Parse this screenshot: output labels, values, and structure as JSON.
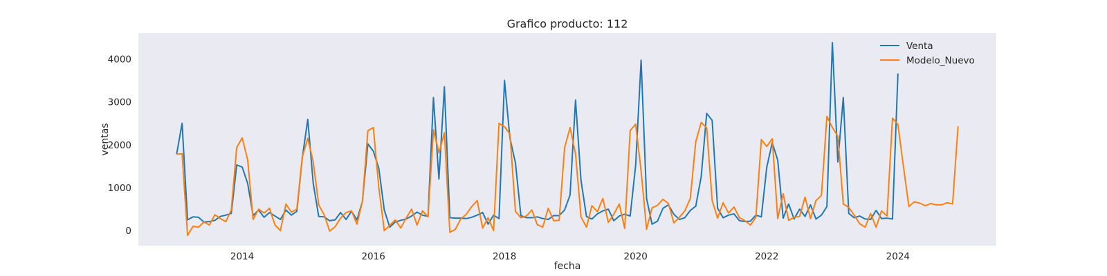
{
  "chart_data": {
    "type": "line",
    "title": "Grafico producto: 112",
    "xlabel": "fecha",
    "ylabel": "ventas",
    "x_ticks": [
      "2014",
      "2016",
      "2018",
      "2020",
      "2022",
      "2024"
    ],
    "y_ticks": [
      "0",
      "1000",
      "2000",
      "3000",
      "4000"
    ],
    "ylim": [
      -350,
      4600
    ],
    "xlim": [
      "2012-06",
      "2025-07"
    ],
    "background": "#eaeaf2",
    "grid": false,
    "legend_position": "top-right",
    "start_date": "2013-01",
    "series": [
      {
        "name": "Venta",
        "color": "#1f77b4",
        "values": [
          1780,
          2500,
          250,
          320,
          310,
          200,
          210,
          240,
          330,
          360,
          400,
          1530,
          1480,
          1100,
          350,
          480,
          310,
          420,
          340,
          260,
          480,
          360,
          450,
          1700,
          2590,
          1100,
          330,
          320,
          230,
          250,
          420,
          260,
          450,
          250,
          680,
          2020,
          1850,
          1450,
          480,
          80,
          200,
          240,
          270,
          340,
          430,
          360,
          330,
          3100,
          1200,
          3350,
          300,
          290,
          290,
          280,
          310,
          360,
          420,
          150,
          360,
          280,
          3500,
          2150,
          1580,
          350,
          300,
          300,
          320,
          280,
          260,
          350,
          350,
          480,
          830,
          3040,
          1170,
          330,
          270,
          390,
          460,
          500,
          230,
          340,
          380,
          340,
          1520,
          3970,
          750,
          150,
          220,
          520,
          600,
          380,
          260,
          300,
          470,
          570,
          1260,
          2730,
          2570,
          520,
          300,
          360,
          390,
          230,
          210,
          220,
          360,
          320,
          1480,
          2050,
          1640,
          290,
          620,
          270,
          500,
          330,
          600,
          270,
          360,
          560,
          4380,
          1600,
          3100,
          400,
          300,
          340,
          270,
          260,
          470,
          280,
          290,
          270,
          3660
        ]
      },
      {
        "name": "Modelo_Nuevo",
        "color": "#ff7f0e",
        "values": [
          1780,
          1790,
          -110,
          100,
          80,
          200,
          130,
          370,
          280,
          210,
          480,
          1940,
          2160,
          1650,
          260,
          500,
          410,
          520,
          130,
          0,
          620,
          430,
          500,
          1720,
          2150,
          1600,
          600,
          370,
          -10,
          90,
          290,
          420,
          460,
          150,
          680,
          2330,
          2400,
          1000,
          0,
          120,
          250,
          60,
          290,
          500,
          130,
          460,
          320,
          2350,
          1810,
          2280,
          -40,
          30,
          270,
          380,
          560,
          700,
          60,
          300,
          0,
          2500,
          2420,
          2250,
          450,
          300,
          340,
          480,
          140,
          80,
          520,
          230,
          240,
          1930,
          2400,
          1790,
          320,
          80,
          580,
          440,
          750,
          190,
          380,
          620,
          50,
          2330,
          2480,
          1390,
          30,
          530,
          590,
          730,
          630,
          180,
          310,
          460,
          750,
          2070,
          2520,
          2390,
          700,
          290,
          650,
          410,
          550,
          300,
          230,
          130,
          310,
          2120,
          1960,
          2140,
          280,
          860,
          240,
          310,
          330,
          780,
          280,
          700,
          820,
          2660,
          2400,
          2200,
          620,
          540,
          360,
          160,
          80,
          400,
          80,
          460,
          340,
          2620,
          2470,
          1500,
          560,
          670,
          640,
          580,
          630,
          600,
          600,
          650,
          620,
          2430
        ]
      }
    ]
  }
}
